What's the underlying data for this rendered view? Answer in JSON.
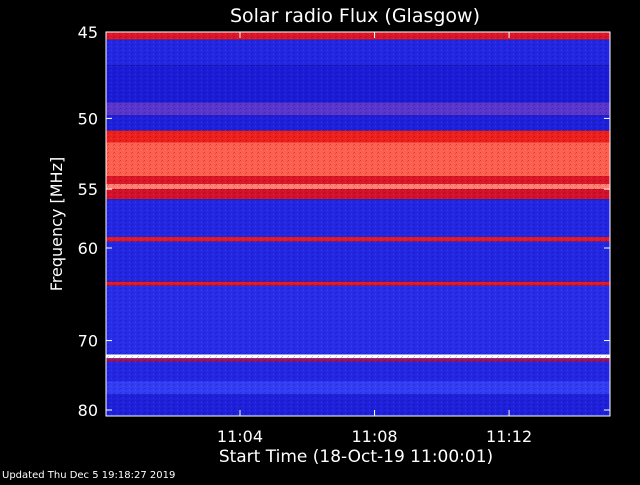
{
  "chart_data": {
    "type": "heatmap",
    "title": "Solar radio Flux (Glasgow)",
    "xlabel": "Start Time (18-Oct-19 11:00:01)",
    "ylabel": "Frequency [MHz]",
    "x_ticks": [
      "11:04",
      "11:08",
      "11:12"
    ],
    "y_ticks": [
      "45",
      "50",
      "55",
      "60",
      "70",
      "80"
    ],
    "start_time": "11:00:01",
    "end_time": "11:15:00",
    "freq_range_mhz": [
      45,
      81
    ],
    "colormap": [
      "#00007a",
      "#1b1bd8",
      "#3a48ff",
      "#b8003a",
      "#ff2a14",
      "#ffffff"
    ],
    "bands": [
      {
        "from": 45.0,
        "to": 45.4,
        "level": 0.7
      },
      {
        "from": 45.4,
        "to": 46.8,
        "level": 0.25
      },
      {
        "from": 46.8,
        "to": 49.0,
        "level": 0.2
      },
      {
        "from": 49.0,
        "to": 49.8,
        "level": 0.45
      },
      {
        "from": 49.8,
        "to": 50.8,
        "level": 0.22
      },
      {
        "from": 50.8,
        "to": 51.6,
        "level": 0.75
      },
      {
        "from": 51.6,
        "to": 54.0,
        "level": 0.85
      },
      {
        "from": 54.0,
        "to": 54.6,
        "level": 0.7
      },
      {
        "from": 54.6,
        "to": 55.0,
        "level": 0.88
      },
      {
        "from": 55.0,
        "to": 55.8,
        "level": 0.68
      },
      {
        "from": 55.8,
        "to": 59.0,
        "level": 0.25
      },
      {
        "from": 59.0,
        "to": 59.4,
        "level": 0.72
      },
      {
        "from": 59.4,
        "to": 63.3,
        "level": 0.25
      },
      {
        "from": 63.3,
        "to": 63.7,
        "level": 0.72
      },
      {
        "from": 63.7,
        "to": 71.8,
        "level": 0.28
      },
      {
        "from": 71.8,
        "to": 72.3,
        "level": 1.0
      },
      {
        "from": 72.3,
        "to": 72.8,
        "level": 0.55
      },
      {
        "from": 72.8,
        "to": 75.5,
        "level": 0.25
      },
      {
        "from": 75.5,
        "to": 77.5,
        "level": 0.35
      },
      {
        "from": 77.5,
        "to": 81.0,
        "level": 0.22
      }
    ],
    "grid": false,
    "legend": "none"
  },
  "footer": {
    "updated": "Updated Thu Dec  5 19:18:27 2019"
  }
}
